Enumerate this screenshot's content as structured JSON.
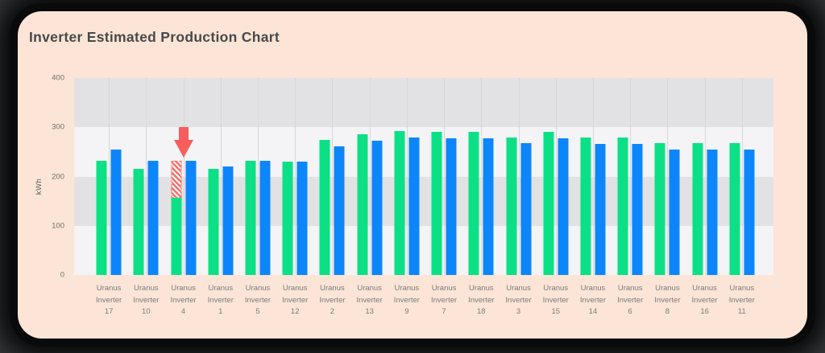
{
  "title": "Inverter Estimated Production Chart",
  "colors": {
    "card_bg": "#fce5d6",
    "green_bar": "#0ce087",
    "blue_bar": "#0d86fb",
    "arrow_red": "#f75d5d",
    "hatch_red": "#f3706a",
    "band_dark": "#e2e2e4",
    "band_light": "#f4f4f6",
    "gridline": "#d5d7d9",
    "title_text": "#48494b",
    "axis_text": "#6f6f6f",
    "category_text": "#7b7b7b"
  },
  "chart_data": {
    "type": "bar",
    "title": "Inverter Estimated Production Chart",
    "xlabel": "",
    "ylabel": "kWh",
    "ylim": [
      0,
      400
    ],
    "yticks": [
      "400",
      "300",
      "200",
      "100",
      "0"
    ],
    "grid": "alternating-horizontal-bands-with-vertical-category-lines",
    "legend": "none",
    "categories": [
      "Uranus Inverter 17",
      "Uranus Inverter 10",
      "Uranus Inverter 4",
      "Uranus Inverter 1",
      "Uranus Inverter 5",
      "Uranus Inverter 12",
      "Uranus Inverter 2",
      "Uranus Inverter 13",
      "Uranus Inverter 9",
      "Uranus Inverter 7",
      "Uranus Inverter 18",
      "Uranus Inverter 3",
      "Uranus Inverter 15",
      "Uranus Inverter 14",
      "Uranus Inverter 6",
      "Uranus Inverter 8",
      "Uranus Inverter 16",
      "Uranus Inverter 11"
    ],
    "series": [
      {
        "name": "green",
        "values": [
          232,
          215,
          232,
          215,
          232,
          230,
          274,
          286,
          292,
          290,
          290,
          279,
          290,
          279,
          279,
          267,
          267,
          267
        ]
      },
      {
        "name": "blue",
        "values": [
          255,
          232,
          232,
          220,
          232,
          230,
          262,
          273,
          280,
          278,
          278,
          267,
          278,
          266,
          266,
          255,
          255,
          254
        ]
      }
    ],
    "highlight": {
      "category": "Uranus Inverter 4",
      "index": 2,
      "solid_green_value": 157,
      "hatched_top_value": 232,
      "marker": "red-down-arrow"
    }
  }
}
